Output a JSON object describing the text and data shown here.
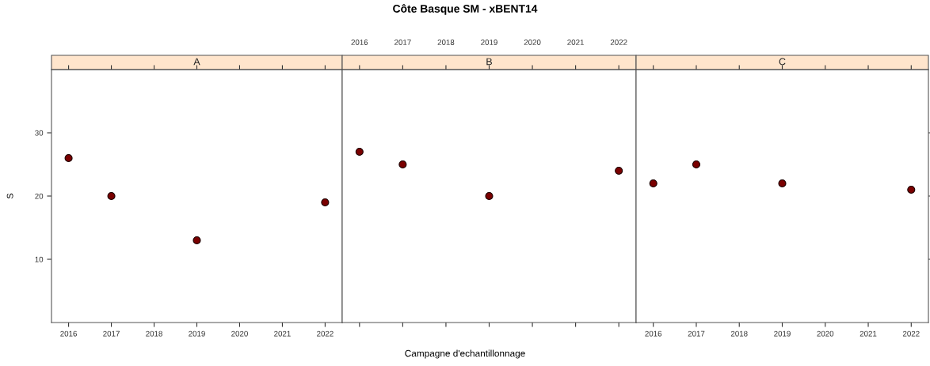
{
  "chart_data": [
    {
      "type": "scatter",
      "subtitle": "A",
      "ylabel": "S",
      "x": [
        2016,
        2017,
        2019,
        2022
      ],
      "series": [
        {
          "color": "#7a0000",
          "values": [
            26,
            20,
            13,
            19
          ]
        }
      ],
      "marker": "circle",
      "xlim": [
        2015.6,
        2022.4
      ],
      "xticks": [
        2016,
        2017,
        2018,
        2019,
        2020,
        2021,
        2022
      ],
      "ylim": [
        0,
        40
      ],
      "yticks": [
        10,
        20,
        30
      ]
    },
    {
      "type": "scatter",
      "title": "Côte Basque SM - xBENT14",
      "subtitle": "B",
      "xlabel": "Campagne d'echantillonnage",
      "x": [
        2016,
        2017,
        2019,
        2022
      ],
      "series": [
        {
          "color": "#7a0000",
          "values": [
            27,
            25,
            20,
            24
          ]
        }
      ],
      "marker": "circle",
      "xlim": [
        2015.6,
        2022.4
      ],
      "xticks": [
        2016,
        2017,
        2018,
        2019,
        2020,
        2021,
        2022
      ],
      "ylim": [
        0,
        40
      ],
      "yticks": [
        10,
        20,
        30
      ],
      "tick_labels": "x"
    },
    {
      "type": "scatter",
      "subtitle": "C",
      "x": [
        2016,
        2017,
        2019,
        2022
      ],
      "series": [
        {
          "color": "#7a0000",
          "values": [
            22,
            25,
            22,
            21
          ]
        }
      ],
      "marker": "circle",
      "xlim": [
        2015.6,
        2022.4
      ],
      "xticks": [
        2016,
        2017,
        2018,
        2019,
        2020,
        2021,
        2022
      ],
      "ylim": [
        0,
        40
      ],
      "yticks": [
        10,
        20,
        30
      ],
      "tick_labels": "x"
    }
  ]
}
